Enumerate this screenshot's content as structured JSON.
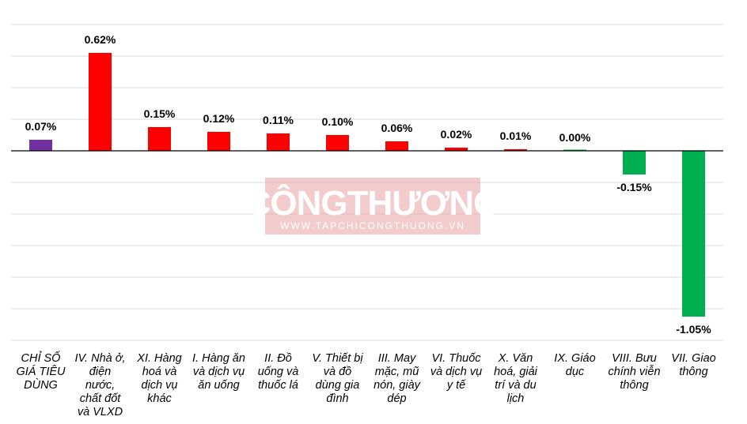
{
  "chart_data": {
    "type": "bar",
    "categories": [
      "CHỈ SỐ GIÁ TIÊU DÙNG",
      "IV. Nhà ở, điện nước, chất đốt và VLXD",
      "XI. Hàng hoá và dịch vụ khác",
      "I. Hàng ăn và dịch vụ ăn uống",
      "II. Đồ uống và thuốc lá",
      "V. Thiết bị và đồ dùng gia đình",
      "III. May mặc, mũ nón, giày dép",
      "VI. Thuốc và dịch vụ y tế",
      "X. Văn hoá, giải trí và du lịch",
      "IX. Giáo dục",
      "VIII. Bưu chính viễn thông",
      "VII. Giao thông"
    ],
    "category_lines": [
      [
        "CHỈ SỐ",
        "GIÁ TIÊU",
        "DÙNG"
      ],
      [
        "IV. Nhà ở,",
        "điện",
        "nước,",
        "chất đốt",
        "và VLXD"
      ],
      [
        "XI. Hàng",
        "hoá và",
        "dịch vụ",
        "khác"
      ],
      [
        "I. Hàng ăn",
        "và dịch vụ",
        "ăn uống"
      ],
      [
        "II. Đồ",
        "uống và",
        "thuốc lá"
      ],
      [
        "V. Thiết bị",
        "và đồ",
        "dùng gia",
        "đình"
      ],
      [
        "III. May",
        "mặc, mũ",
        "nón, giày",
        "dép"
      ],
      [
        "VI. Thuốc",
        "và dịch vụ",
        "y tế"
      ],
      [
        "X. Văn",
        "hoá, giải",
        "trí và du",
        "lịch"
      ],
      [
        "IX. Giáo",
        "dục"
      ],
      [
        "VIII. Bưu",
        "chính viễn",
        "thông"
      ],
      [
        "VII. Giao",
        "thông"
      ]
    ],
    "values": [
      0.07,
      0.62,
      0.15,
      0.12,
      0.11,
      0.1,
      0.06,
      0.02,
      0.01,
      0.0,
      -0.15,
      -1.05
    ],
    "labels": [
      "0.07%",
      "0.62%",
      "0.15%",
      "0.12%",
      "0.11%",
      "0.10%",
      "0.06%",
      "0.02%",
      "0.01%",
      "0.00%",
      "-0.15%",
      "-1.05%"
    ],
    "colors": [
      "#7030a0",
      "#ff0000",
      "#ff0000",
      "#ff0000",
      "#ff0000",
      "#ff0000",
      "#ff0000",
      "#ff0000",
      "#ff0000",
      "#00b050",
      "#00b050",
      "#00b050"
    ],
    "unit": "%",
    "ylim": [
      -1.2,
      0.8
    ],
    "grid_step": 0.2,
    "grid": true,
    "legend": "none"
  },
  "watermark": {
    "title": "CÔNGTHƯƠNG",
    "url": "WWW.TAPCHICONGTHUONG.VN"
  }
}
